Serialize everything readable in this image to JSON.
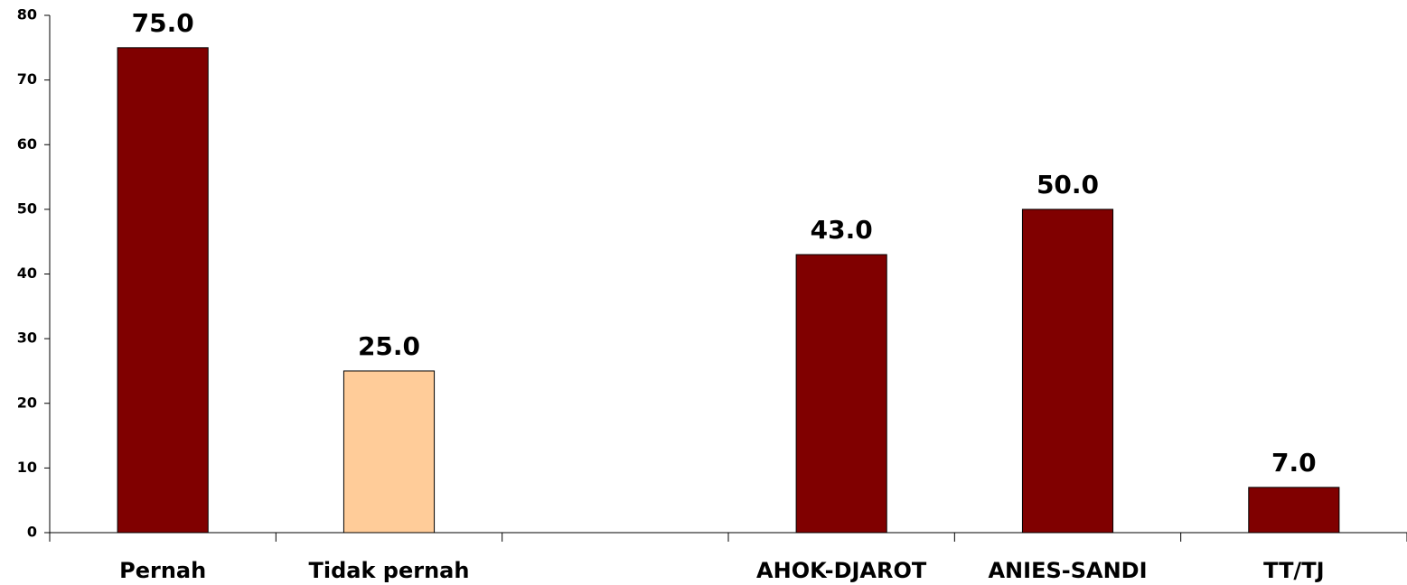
{
  "chart_data": {
    "type": "bar",
    "categories": [
      "Pernah",
      "Tidak pernah",
      null,
      "AHOK-DJAROT",
      "ANIES-SANDI",
      "TT/TJ"
    ],
    "values": [
      75,
      25,
      null,
      43,
      50,
      7
    ],
    "value_labels": [
      "75.0",
      "25.0",
      null,
      "43.0",
      "50.0",
      "7.0"
    ],
    "colors": [
      "#800000",
      "#ffcc99",
      null,
      "#800000",
      "#800000",
      "#800000"
    ],
    "ylim": [
      0,
      80
    ],
    "yticks": [
      0,
      10,
      20,
      30,
      40,
      50,
      60,
      70,
      80
    ],
    "grid": false
  }
}
